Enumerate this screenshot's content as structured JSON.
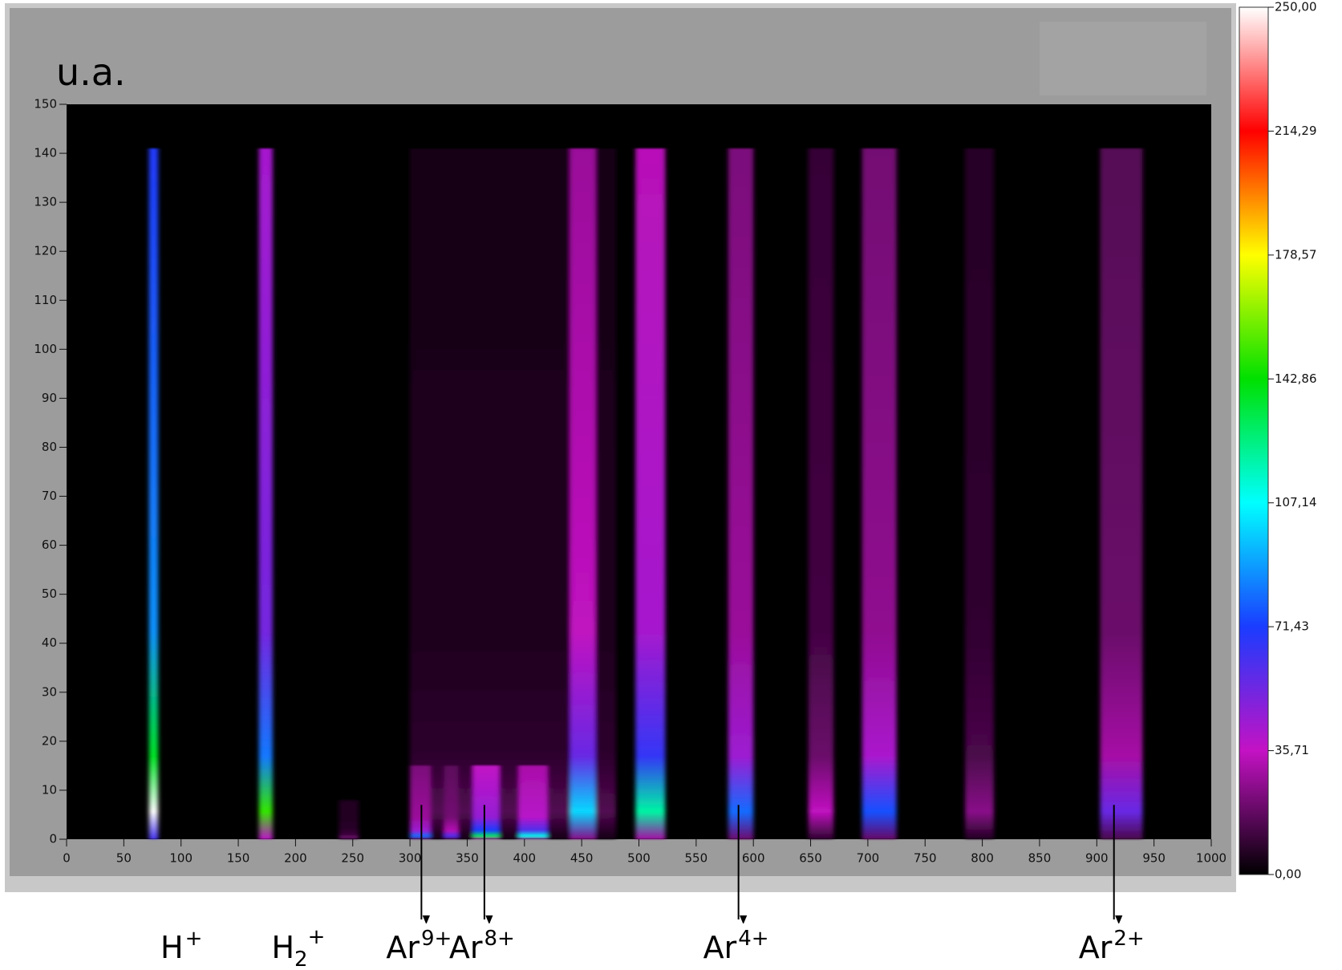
{
  "chart_data": {
    "type": "heatmap",
    "y_unit_label": "u.a.",
    "xlim": [
      0,
      1000
    ],
    "xticks": [
      0,
      50,
      100,
      150,
      200,
      250,
      300,
      350,
      400,
      450,
      500,
      550,
      600,
      650,
      700,
      750,
      800,
      850,
      900,
      950,
      1000
    ],
    "ylim": [
      0,
      150
    ],
    "yticks": [
      0,
      10,
      20,
      30,
      40,
      50,
      60,
      70,
      80,
      90,
      100,
      110,
      120,
      130,
      140,
      150
    ],
    "clim": [
      0,
      250
    ],
    "cticks": [
      {
        "value": 0,
        "label": "0,00"
      },
      {
        "value": 35.71,
        "label": "35,71"
      },
      {
        "value": 71.43,
        "label": "71,43"
      },
      {
        "value": 107.14,
        "label": "107,14"
      },
      {
        "value": 142.86,
        "label": "142,86"
      },
      {
        "value": 178.57,
        "label": "178,57"
      },
      {
        "value": 214.29,
        "label": "214,29"
      },
      {
        "value": 250,
        "label": "250,00"
      }
    ],
    "colormap": [
      "#000000",
      "#c412c4",
      "#1a3cff",
      "#00ffff",
      "#00e000",
      "#ffff00",
      "#ff0000",
      "#ffffff"
    ],
    "streaks": [
      {
        "x_range": [
          300,
          480
        ],
        "y_range": [
          0,
          141
        ],
        "peak": 15
      },
      {
        "x_range": [
          72,
          80
        ],
        "y_range": [
          0,
          141
        ],
        "peak": 250
      },
      {
        "x_range": [
          168,
          180
        ],
        "y_range": [
          0,
          141
        ],
        "peak": 150
      },
      {
        "x_range": [
          238,
          255
        ],
        "y_range": [
          0,
          8
        ],
        "peak": 20
      },
      {
        "x_range": [
          300,
          318
        ],
        "y_range": [
          0,
          15
        ],
        "peak": 80
      },
      {
        "x_range": [
          330,
          342
        ],
        "y_range": [
          0,
          15
        ],
        "peak": 60
      },
      {
        "x_range": [
          355,
          378
        ],
        "y_range": [
          0,
          15
        ],
        "peak": 130
      },
      {
        "x_range": [
          395,
          420
        ],
        "y_range": [
          0,
          15
        ],
        "peak": 110
      },
      {
        "x_range": [
          440,
          462
        ],
        "y_range": [
          0,
          141
        ],
        "peak": 100
      },
      {
        "x_range": [
          497,
          523
        ],
        "y_range": [
          0,
          141
        ],
        "peak": 120
      },
      {
        "x_range": [
          578,
          600
        ],
        "y_range": [
          0,
          141
        ],
        "peak": 80
      },
      {
        "x_range": [
          648,
          670
        ],
        "y_range": [
          0,
          141
        ],
        "peak": 35
      },
      {
        "x_range": [
          695,
          725
        ],
        "y_range": [
          0,
          141
        ],
        "peak": 75
      },
      {
        "x_range": [
          785,
          810
        ],
        "y_range": [
          0,
          141
        ],
        "peak": 25
      },
      {
        "x_range": [
          903,
          940
        ],
        "y_range": [
          0,
          141
        ],
        "peak": 55
      }
    ],
    "annotations": [
      {
        "base": "H",
        "sup": "+",
        "x": 75,
        "arrow": false
      },
      {
        "base": "H",
        "sub": "2",
        "sup": "+",
        "x": 172,
        "arrow": false
      },
      {
        "base": "Ar",
        "sup": "9+",
        "x": 310,
        "arrow": true
      },
      {
        "base": "Ar",
        "sup": "8+",
        "x": 365,
        "arrow": true
      },
      {
        "base": "Ar",
        "sup": "4+",
        "x": 587,
        "arrow": true
      },
      {
        "base": "Ar",
        "sup": "2+",
        "x": 915,
        "arrow": true
      }
    ]
  }
}
